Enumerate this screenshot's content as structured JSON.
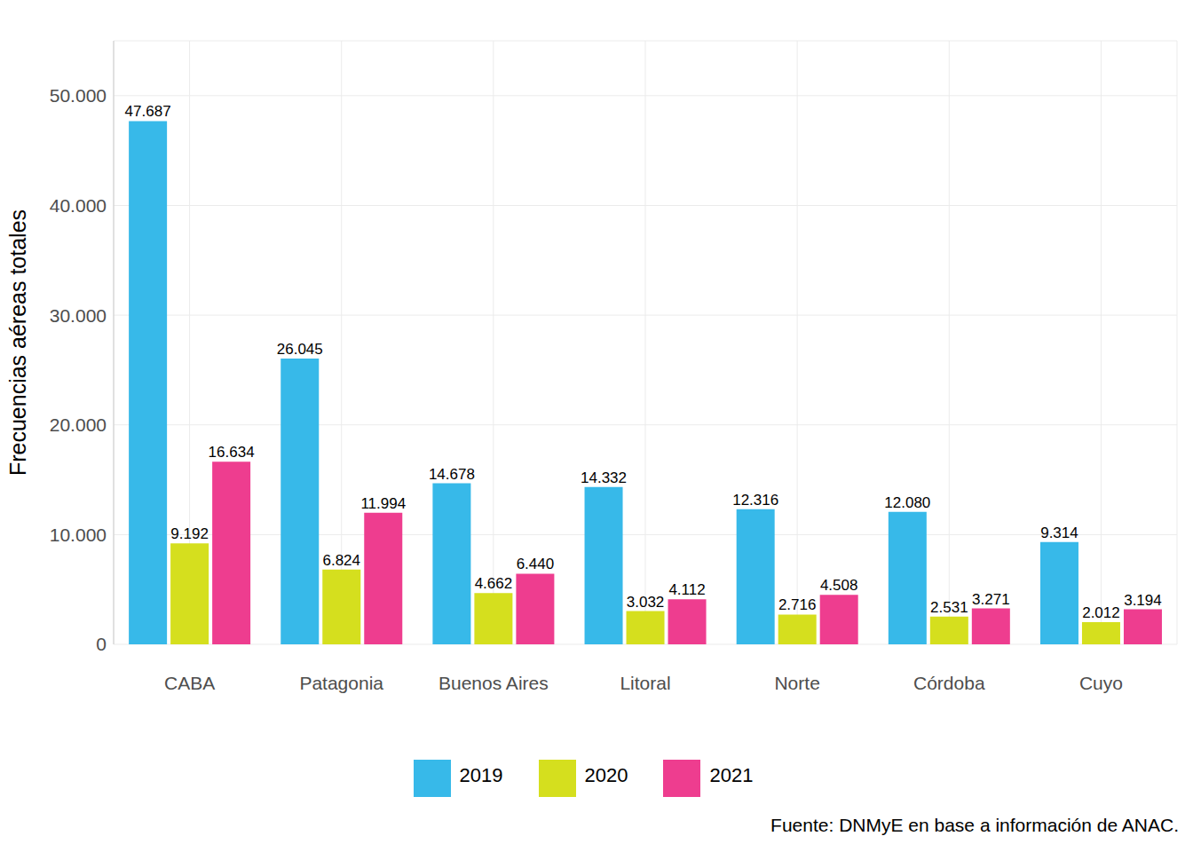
{
  "chart_data": {
    "type": "bar",
    "y_label": "Frecuencias aéreas totales",
    "caption": "Fuente: DNMyE en base a información de ANAC.",
    "categories": [
      "CABA",
      "Patagonia",
      "Buenos Aires",
      "Litoral",
      "Norte",
      "Córdoba",
      "Cuyo"
    ],
    "series": [
      {
        "name": "2019",
        "color": "#37b9e9",
        "values": [
          47687,
          26045,
          14678,
          14332,
          12316,
          12080,
          9314
        ],
        "value_labels": [
          "47.687",
          "26.045",
          "14.678",
          "14.332",
          "12.316",
          "12.080",
          "9.314"
        ]
      },
      {
        "name": "2020",
        "color": "#d5df1e",
        "values": [
          9192,
          6824,
          4662,
          3032,
          2716,
          2531,
          2012
        ],
        "value_labels": [
          "9.192",
          "6.824",
          "4.662",
          "3.032",
          "2.716",
          "2.531",
          "2.012"
        ]
      },
      {
        "name": "2021",
        "color": "#ee3d8f",
        "values": [
          16634,
          11994,
          6440,
          4112,
          4508,
          3271,
          3194
        ],
        "value_labels": [
          "16.634",
          "11.994",
          "6.440",
          "4.112",
          "4.508",
          "3.271",
          "3.194"
        ]
      }
    ],
    "ylim": [
      0,
      55000
    ],
    "yticks": [
      0,
      {
        "value": 10000,
        "label": "10.000"
      },
      {
        "value": 20000,
        "label": "20.000"
      },
      {
        "value": 30000,
        "label": "30.000"
      },
      {
        "value": 40000,
        "label": "40.000"
      },
      {
        "value": 50000,
        "label": "50.000"
      }
    ],
    "grid": true,
    "legend": "bottom",
    "data_labels": true
  }
}
